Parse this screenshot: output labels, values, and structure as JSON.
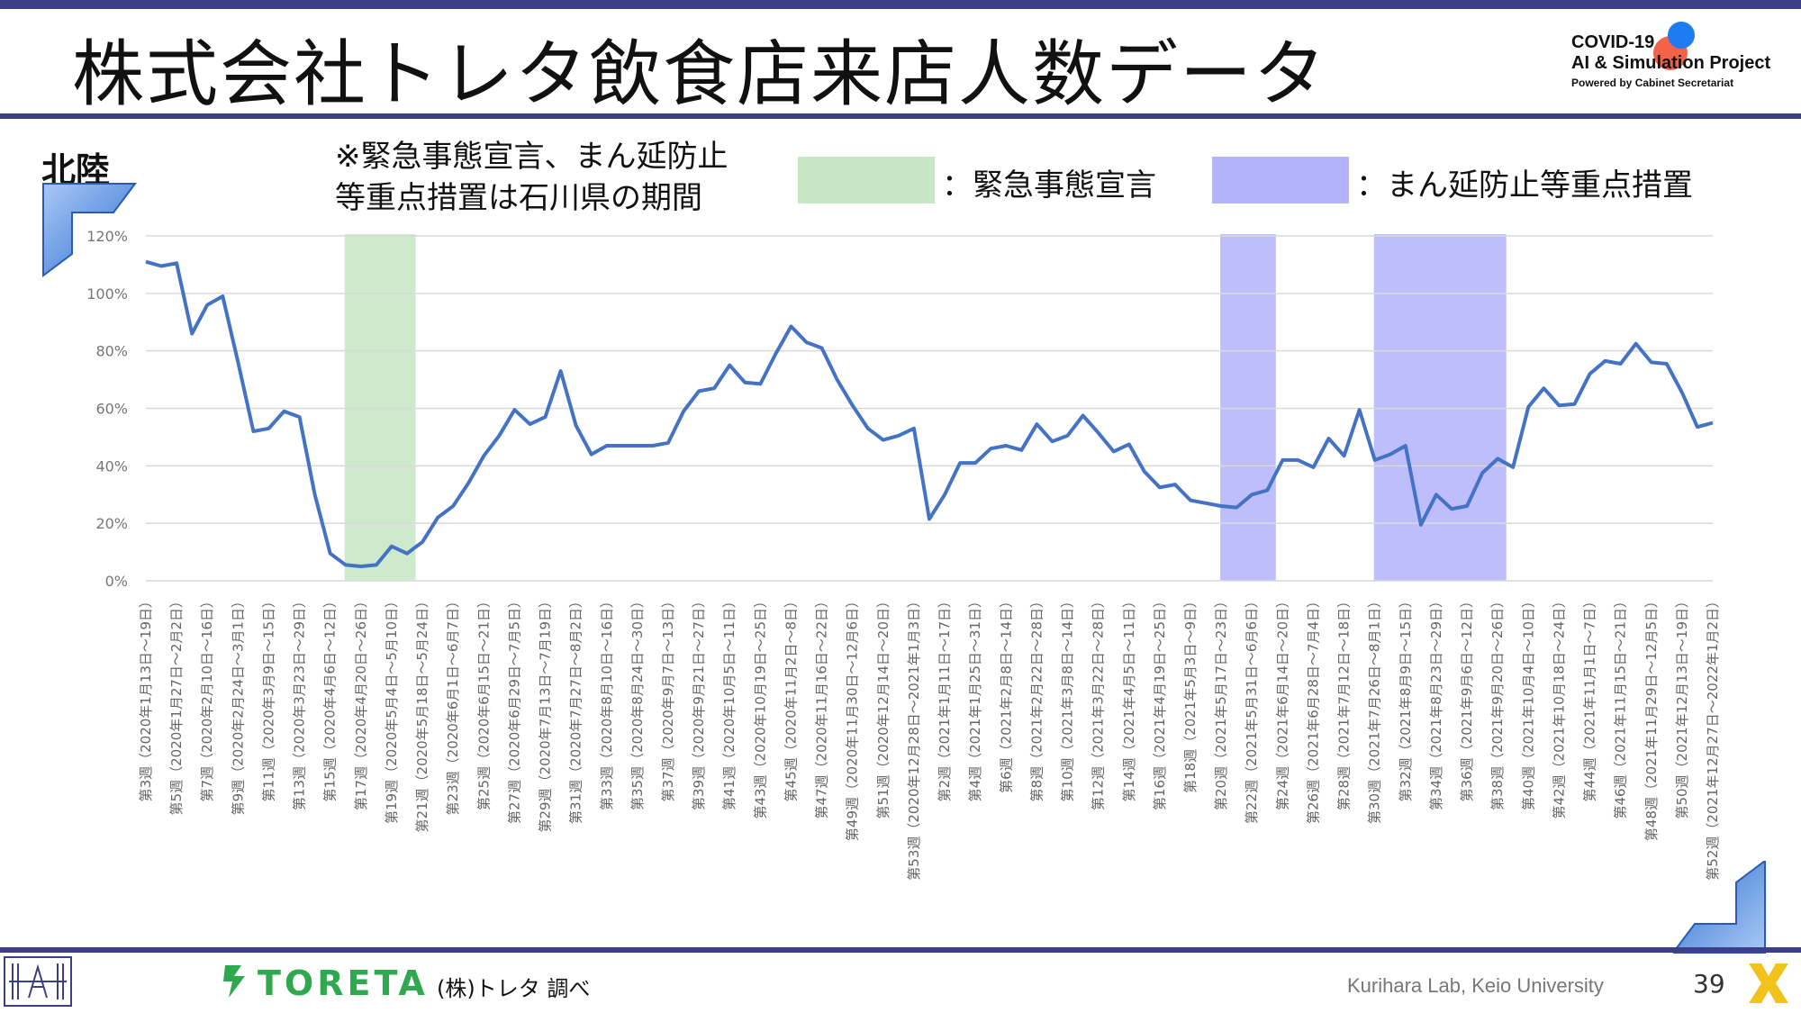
{
  "header": {
    "title": "株式会社トレタ飲食店来店人数データ",
    "project_line1": "COVID-19",
    "project_line2": "AI & Simulation Project",
    "project_line3": "Powered by Cabinet Secretariat"
  },
  "region": "北陸",
  "note_line1": "※緊急事態宣言、まん延防止",
  "note_line2": "等重点措置は石川県の期間",
  "legend": {
    "emergency": {
      "label": "：緊急事態宣言",
      "color": "#c6e6c4"
    },
    "priority": {
      "label": "：まん延防止等重点措置",
      "color": "#b3b3fb"
    }
  },
  "footer": {
    "brand": "TORETA",
    "source": "(株)トレタ 調べ",
    "lab": "Kurihara Lab, Keio University",
    "page": "39"
  },
  "chart_data": {
    "type": "line",
    "line_color": "#4472c4",
    "ylim": [
      0,
      120
    ],
    "yticks": [
      "0%",
      "20%",
      "40%",
      "60%",
      "80%",
      "100%",
      "120%"
    ],
    "grid": true,
    "x_labels": [
      "第3週（2020年1月13日～19日）",
      "第5週（2020年1月27日～2月2日）",
      "第7週（2020年2月10日～16日）",
      "第9週（2020年2月24日～3月1日）",
      "第11週（2020年3月9日～15日）",
      "第13週（2020年3月23日～29日）",
      "第15週（2020年4月6日～12日）",
      "第17週（2020年4月20日～26日）",
      "第19週（2020年5月4日～5月10日）",
      "第21週（2020年5月18日～5月24日）",
      "第23週（2020年6月1日～6月7日）",
      "第25週（2020年6月15日～21日）",
      "第27週（2020年6月29日～7月5日）",
      "第29週（2020年7月13日～7月19日）",
      "第31週（2020年7月27日～8月2日）",
      "第33週（2020年8月10日～16日）",
      "第35週（2020年8月24日～30日）",
      "第37週（2020年9月7日～13日）",
      "第39週（2020年9月21日～27日）",
      "第41週（2020年10月5日～11日）",
      "第43週（2020年10月19日～25日）",
      "第45週（2020年11月2日～8日）",
      "第47週（2020年11月16日～22日）",
      "第49週（2020年11月30日～12月6日）",
      "第51週（2020年12月14日～20日）",
      "第53週（2020年12月28日～2021年1月3日）",
      "第2週（2021年1月11日～17日）",
      "第4週（2021年1月25日～31日）",
      "第6週（2021年2月8日～14日）",
      "第8週（2021年2月22日～28日）",
      "第10週（2021年3月8日～14日）",
      "第12週（2021年3月22日～28日）",
      "第14週（2021年4月5日～11日）",
      "第16週（2021年4月19日～25日）",
      "第18週（2021年5月3日～9日）",
      "第20週（2021年5月17日～23日）",
      "第22週（2021年5月31日～6月6日）",
      "第24週（2021年6月14日～20日）",
      "第26週（2021年6月28日～7月4日）",
      "第28週（2021年7月12日～18日）",
      "第30週（2021年7月26日～8月1日）",
      "第32週（2021年8月9日～15日）",
      "第34週（2021年8月23日～29日）",
      "第36週（2021年9月6日～12日）",
      "第38週（2021年9月20日～26日）",
      "第40週（2021年10月4日～10日）",
      "第42週（2021年10月18日～24日）",
      "第44週（2021年11月1日～7日）",
      "第46週（2021年11月15日～21日）",
      "第48週（2021年11月29日～12月5日）",
      "第50週（2021年12月13日～19日）",
      "第52週（2021年12月27日～2022年1月2日）"
    ],
    "values": [
      111,
      109.5,
      110.5,
      86,
      96,
      99,
      76,
      52,
      53,
      59,
      57,
      30,
      9.5,
      5.5,
      5,
      5.5,
      12,
      9.5,
      13.5,
      22,
      26,
      34,
      43.5,
      50.5,
      59.5,
      54.5,
      57,
      73,
      54,
      44,
      47,
      47,
      47,
      47,
      48,
      59,
      66,
      67,
      75,
      69,
      68.5,
      79,
      88.5,
      83,
      81,
      70,
      61,
      53,
      49,
      50.5,
      53,
      21.5,
      30,
      41,
      41,
      46,
      47,
      45.5,
      54.5,
      48.5,
      50.5,
      57.5,
      51.5,
      45,
      47.5,
      38,
      32.5,
      33.5,
      28,
      27,
      26,
      25.5,
      30,
      31.5,
      42,
      42,
      39.5,
      49.5,
      43.5,
      59.5,
      42,
      44,
      47,
      19.5,
      30,
      25,
      26,
      37.5,
      42.5,
      39.5,
      60.5,
      67,
      61,
      61.5,
      72,
      76.5,
      75.5,
      82.5,
      76,
      75.5,
      65.5,
      53.5,
      55
    ],
    "bands": [
      {
        "type": "緊急事態宣言",
        "from_index": 13,
        "to_index": 17.5
      },
      {
        "type": "まん延防止等重点措置",
        "from_index": 70,
        "to_index": 73.5
      },
      {
        "type": "まん延防止等重点措置",
        "from_index": 80,
        "to_index": 88.5
      }
    ]
  }
}
